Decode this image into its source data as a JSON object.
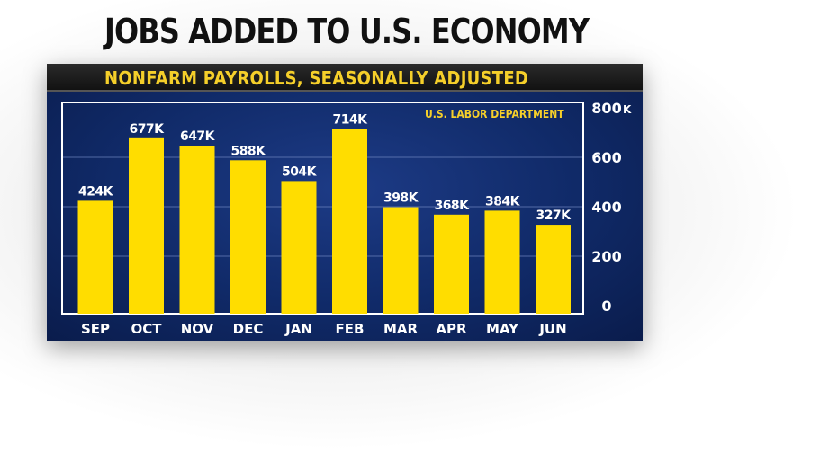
{
  "headline": "JOBS ADDED TO U.S. ECONOMY",
  "subtitle": "NONFARM PAYROLLS, SEASONALLY ADJUSTED",
  "source": "U.S. LABOR DEPARTMENT",
  "colors": {
    "bar": "#ffdd00",
    "label": "#ffffff",
    "accent": "#f5cf2a",
    "plot_border": "#ffffff",
    "gridline": "#6f86c0"
  },
  "chart_data": {
    "type": "bar",
    "categories": [
      "SEP",
      "OCT",
      "NOV",
      "DEC",
      "JAN",
      "FEB",
      "MAR",
      "APR",
      "MAY",
      "JUN"
    ],
    "values": [
      424,
      677,
      647,
      588,
      504,
      714,
      398,
      368,
      384,
      327
    ],
    "data_labels": [
      "424K",
      "677K",
      "647K",
      "588K",
      "504K",
      "714K",
      "398K",
      "368K",
      "384K",
      "327K"
    ],
    "ylim": [
      0,
      800
    ],
    "yticks": [
      0,
      200,
      400,
      600,
      800
    ],
    "ytick_labels": [
      "0",
      "200",
      "400",
      "600",
      "800"
    ],
    "y_unit": "K",
    "grid": true
  }
}
